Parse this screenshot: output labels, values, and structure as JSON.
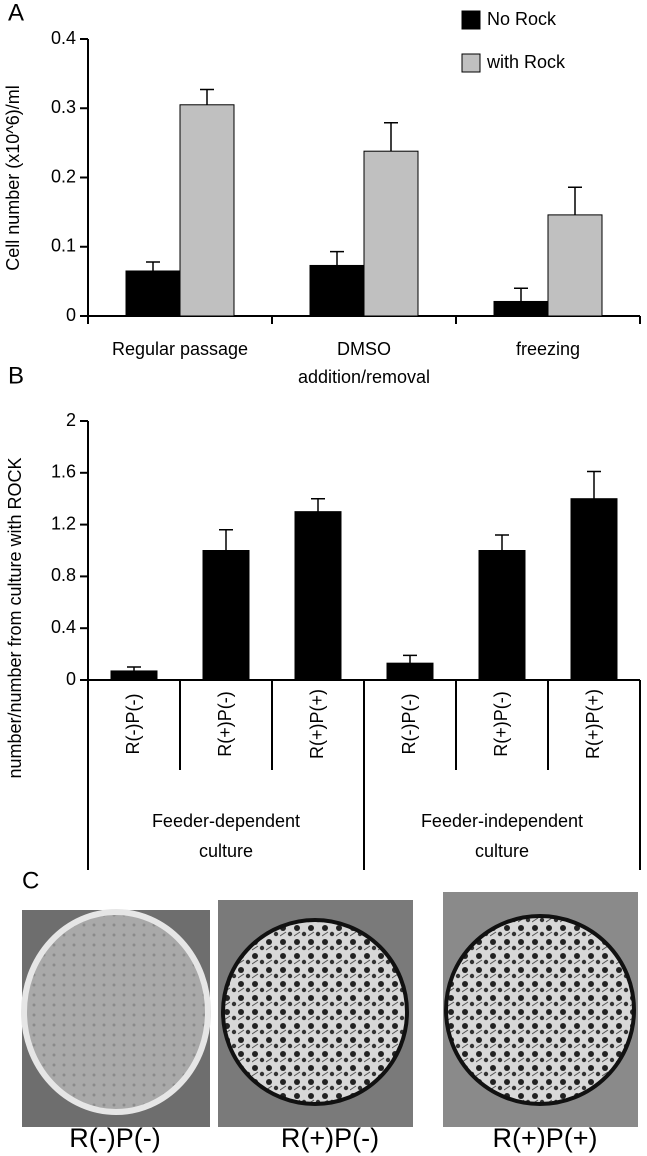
{
  "chart_data": [
    {
      "type": "bar",
      "panel_label": "A",
      "ylabel": "Cell number (x10^6)/ml",
      "categories": [
        [
          "Regular passage"
        ],
        [
          "DMSO",
          "addition/removal"
        ],
        [
          "freezing"
        ]
      ],
      "series": [
        {
          "name": "No Rock",
          "color": "#000000",
          "values": [
            0.065,
            0.073,
            0.021
          ],
          "errors": [
            0.013,
            0.02,
            0.019
          ]
        },
        {
          "name": "with Rock",
          "color": "#c0c0c0",
          "values": [
            0.305,
            0.238,
            0.146
          ],
          "errors": [
            0.022,
            0.041,
            0.04
          ]
        }
      ],
      "ylim": [
        0,
        0.4
      ],
      "yticks": [
        0,
        0.1,
        0.2,
        0.3,
        0.4
      ],
      "legend": "top-right"
    },
    {
      "type": "bar",
      "panel_label": "B",
      "ylabel": "number/number from culture with ROCK",
      "categories": [
        "R(-)P(-)",
        "R(+)P(-)",
        "R(+)P(+)",
        "R(-)P(-)",
        "R(+)P(-)",
        "R(+)P(+)"
      ],
      "groups": [
        {
          "label": [
            "Feeder-dependent",
            "culture"
          ],
          "size": 3
        },
        {
          "label": [
            "Feeder-independent",
            "culture"
          ],
          "size": 3
        }
      ],
      "series": [
        {
          "color": "#000000",
          "values": [
            0.07,
            1.0,
            1.3,
            0.13,
            1.0,
            1.4
          ],
          "errors": [
            0.03,
            0.16,
            0.1,
            0.06,
            0.12,
            0.21
          ]
        }
      ],
      "ylim": [
        0,
        2
      ],
      "yticks": [
        0,
        0.4,
        0.8,
        1.2,
        1.6,
        2
      ]
    }
  ],
  "panel_c": {
    "panel_label": "C",
    "labels": [
      "R(-)P(-)",
      "R(+)P(-)",
      "R(+)P(+)"
    ]
  }
}
